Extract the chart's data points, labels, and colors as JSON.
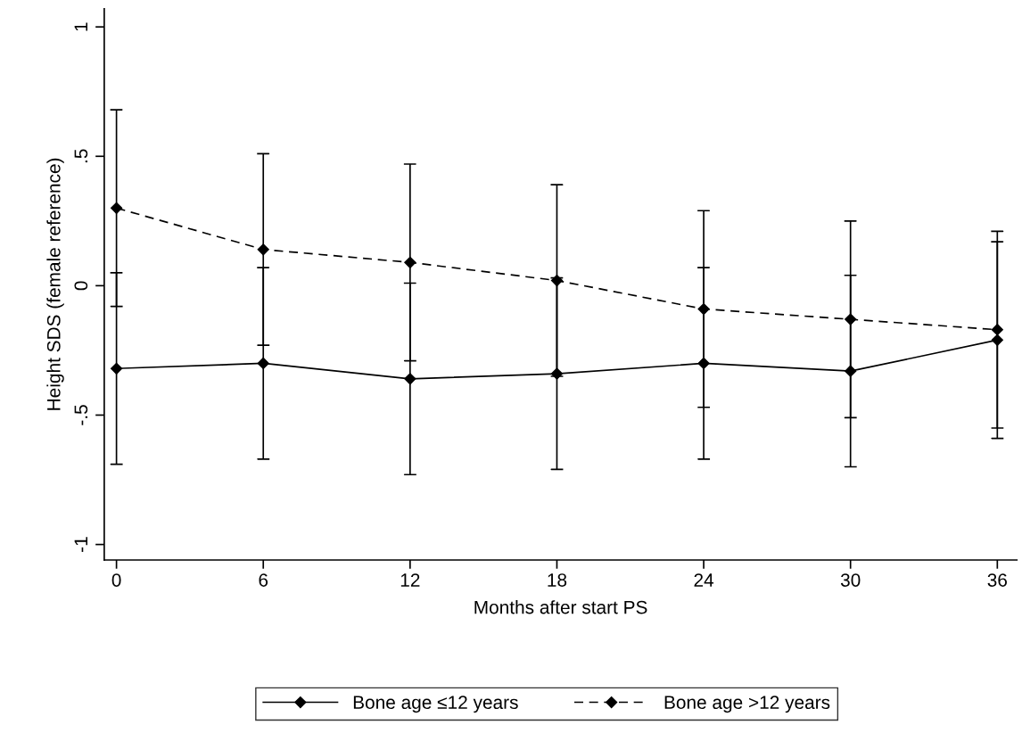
{
  "chart_data": {
    "type": "line",
    "xlabel": "Months after start PS",
    "ylabel": "Height SDS (female reference)",
    "x": [
      0,
      6,
      12,
      18,
      24,
      30,
      36
    ],
    "series": [
      {
        "name": "Bone age ≤12 years",
        "color": "#000000",
        "line_style": "solid",
        "values": [
          -0.32,
          -0.3,
          -0.36,
          -0.34,
          -0.3,
          -0.33,
          -0.21
        ],
        "errors": [
          0.37,
          0.37,
          0.37,
          0.37,
          0.37,
          0.37,
          0.38
        ]
      },
      {
        "name": "Bone age >12 years",
        "color": "#000000",
        "line_style": "dashed",
        "values": [
          0.3,
          0.14,
          0.09,
          0.02,
          -0.09,
          -0.13,
          -0.17
        ],
        "errors": [
          0.38,
          0.37,
          0.38,
          0.37,
          0.38,
          0.38,
          0.38
        ]
      }
    ],
    "marker": "diamond",
    "xlim": [
      -0.5,
      36.8
    ],
    "xticks": [
      0,
      6,
      12,
      18,
      24,
      30,
      36
    ],
    "ylim": [
      -1.06,
      1.07
    ],
    "yticks": [
      {
        "value": -1,
        "label": "-1"
      },
      {
        "value": -0.5,
        "label": "-.5"
      },
      0,
      {
        "value": 0.5,
        "label": ".5"
      },
      1
    ],
    "grid": false,
    "legend": "bottom"
  }
}
